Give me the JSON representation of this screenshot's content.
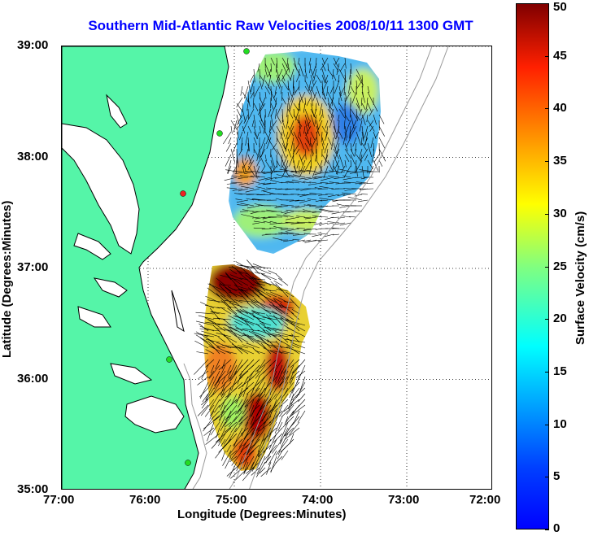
{
  "title": "Southern Mid-Atlantic Raw Velocities 2008/10/11 1300 GMT",
  "map": {
    "xlabel": "Longitude (Degrees:Minutes)",
    "ylabel": "Latitude (Degrees:Minutes)",
    "lon_range": [
      -77,
      -72
    ],
    "lat_range": [
      35,
      39
    ],
    "x_ticks": [
      {
        "value": -77,
        "label": "77:00"
      },
      {
        "value": -76,
        "label": "76:00"
      },
      {
        "value": -75,
        "label": "75:00"
      },
      {
        "value": -74,
        "label": "74:00"
      },
      {
        "value": -73,
        "label": "73:00"
      },
      {
        "value": -72,
        "label": "72:00"
      }
    ],
    "y_ticks": [
      {
        "value": 39,
        "label": "39:00"
      },
      {
        "value": 38,
        "label": "38:00"
      },
      {
        "value": 37,
        "label": "37:00"
      },
      {
        "value": 36,
        "label": "36:00"
      },
      {
        "value": 35,
        "label": "35:00"
      }
    ],
    "grid": "dotted",
    "land_color": "#55f5a8",
    "coastline_color": "#000000",
    "bathymetry_color": "#9a9a9a",
    "vector_color": "#000000",
    "station_colors": {
      "active": "#22dd22",
      "inactive": "#ee2222"
    }
  },
  "colorbar": {
    "label": "Surface Velocity (cm/s)",
    "min": 0,
    "max": 50,
    "ticks": [
      "0",
      "5",
      "10",
      "15",
      "20",
      "25",
      "30",
      "35",
      "40",
      "45",
      "50"
    ],
    "colormap": "jet"
  }
}
